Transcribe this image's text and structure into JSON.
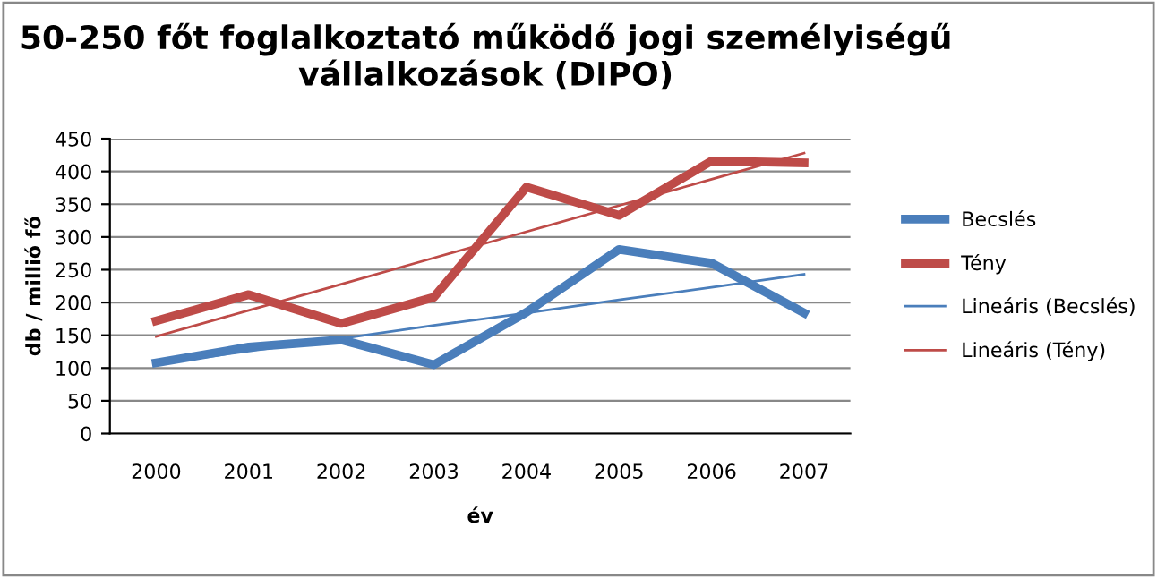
{
  "chart_data": {
    "type": "line",
    "title": "50-250 főt foglalkoztató működő jogi személyiségű vállalkozások (DIPO)",
    "xlabel": "év",
    "ylabel": "db / millió fő",
    "categories": [
      "2000",
      "2001",
      "2002",
      "2003",
      "2004",
      "2005",
      "2006",
      "2007"
    ],
    "series": [
      {
        "name": "Becslés",
        "color": "#4a7ebb",
        "values": [
          108,
          132,
          143,
          105,
          185,
          281,
          260,
          184
        ]
      },
      {
        "name": "Tény",
        "color": "#be4b48",
        "values": [
          172,
          212,
          168,
          208,
          376,
          333,
          416,
          413
        ]
      },
      {
        "name": "Lineáris (Becslés)",
        "color": "#4a7ebb",
        "values": [
          106,
          126,
          145,
          165,
          184,
          204,
          223,
          243
        ]
      },
      {
        "name": "Lineáris (Tény)",
        "color": "#be4b48",
        "values": [
          148,
          188,
          228,
          268,
          308,
          348,
          388,
          428
        ]
      }
    ],
    "ylim": [
      0,
      450
    ],
    "yticks": [
      0,
      50,
      100,
      150,
      200,
      250,
      300,
      350,
      400,
      450
    ],
    "grid": "y",
    "legend": "right"
  }
}
